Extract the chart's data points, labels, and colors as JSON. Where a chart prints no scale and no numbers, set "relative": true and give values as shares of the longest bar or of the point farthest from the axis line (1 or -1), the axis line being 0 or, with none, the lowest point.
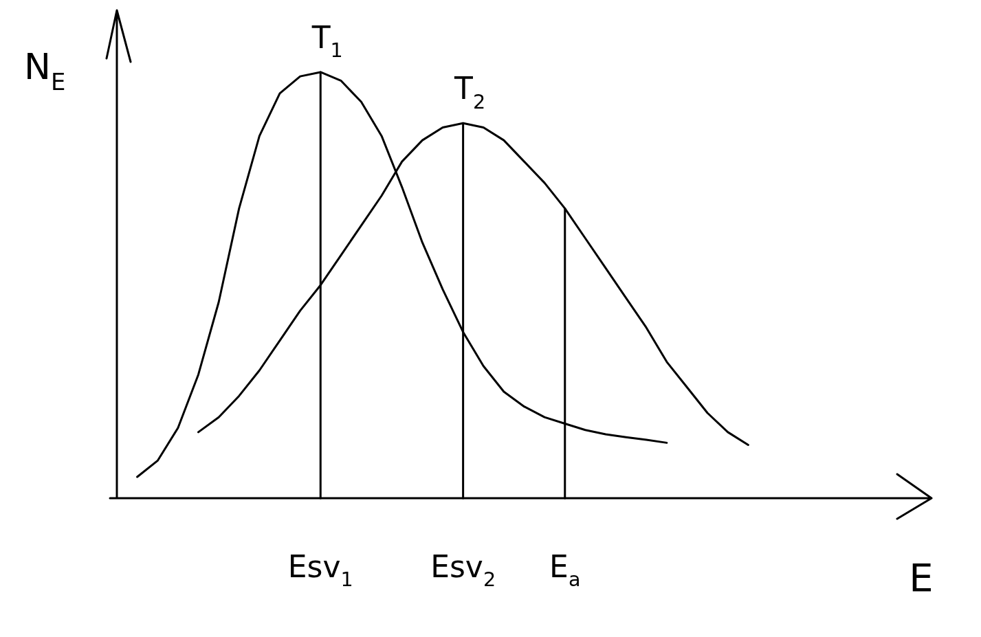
{
  "chart_data": {
    "type": "line",
    "relative": true,
    "xlabel": "E",
    "ylabel": "N$_{E}$",
    "legend": false,
    "marker": "none",
    "line_style": "solid",
    "categories": [
      null,
      null,
      null,
      null,
      null,
      null,
      null,
      null,
      null,
      null,
      "Esv$_{1}$",
      null,
      null,
      null,
      null,
      null,
      null,
      "Esv$_{2}$",
      null,
      null,
      null,
      null,
      "E$_{a}$",
      null,
      null,
      null,
      null,
      null,
      null,
      null,
      null,
      null,
      null,
      null,
      null,
      null,
      null,
      null,
      null,
      null,
      null
    ],
    "series": [
      {
        "name": "T$_{1}$",
        "color": "#000000",
        "values": [
          null,
          0.05,
          0.088,
          0.165,
          0.29,
          0.46,
          0.68,
          0.85,
          0.95,
          0.99,
          1,
          0.98,
          0.93,
          0.85,
          0.73,
          0.6,
          0.49,
          0.39,
          0.31,
          0.25,
          0.215,
          0.19,
          0.175,
          0.16,
          0.15,
          0.143,
          0.137,
          0.13,
          null,
          null,
          null,
          null,
          null,
          null,
          null,
          null,
          null,
          null,
          null,
          null,
          null
        ]
      },
      {
        "name": "T$_{2}$",
        "color": "#000000",
        "values": [
          null,
          null,
          null,
          null,
          0.155,
          0.19,
          0.24,
          0.3,
          0.37,
          0.44,
          0.5,
          0.57,
          0.64,
          0.71,
          0.79,
          0.84,
          0.87,
          0.88,
          0.87,
          0.84,
          0.79,
          0.74,
          0.68,
          0.61,
          0.54,
          0.47,
          0.4,
          0.32,
          0.26,
          0.2,
          0.155,
          0.125,
          null,
          null,
          null,
          null,
          null,
          null,
          null,
          null,
          null
        ]
      }
    ],
    "ref_lines": [
      {
        "axis": "x",
        "value": "Esv$_{1}$",
        "color": "#000000"
      },
      {
        "axis": "x",
        "value": "Esv$_{2}$",
        "color": "#000000"
      },
      {
        "axis": "x",
        "value": "E$_{a}$",
        "color": "#000000"
      }
    ]
  }
}
